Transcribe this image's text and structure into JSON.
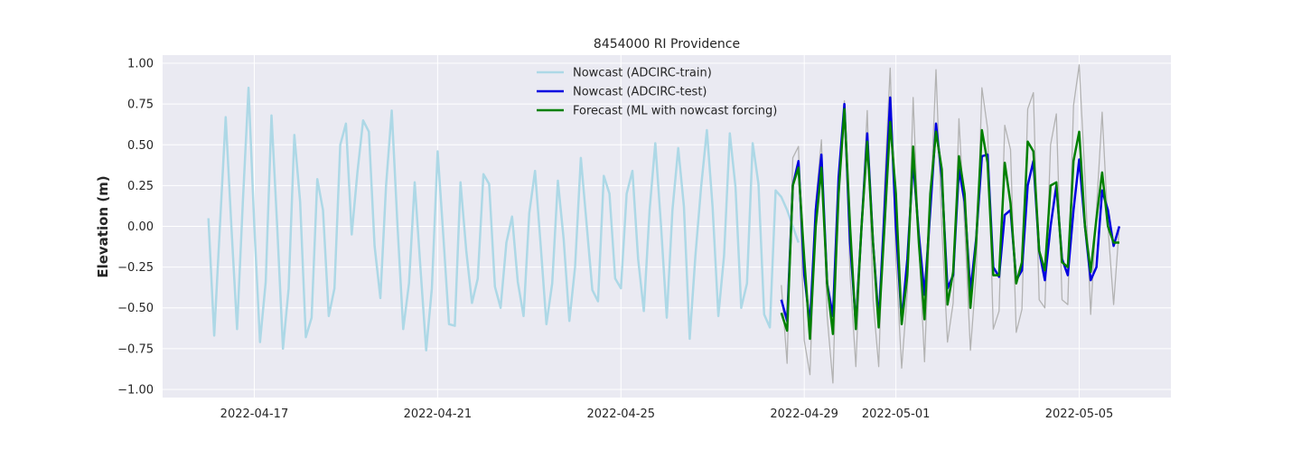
{
  "chart_data": {
    "type": "line",
    "title": "8454000 RI Providence",
    "xlabel": "",
    "ylabel": "Elevation (m)",
    "x_axis": {
      "type": "date",
      "range": [
        "2022-04-15T00:00",
        "2022-05-07T00:00"
      ],
      "tick_labels": [
        "2022-04-17",
        "2022-04-21",
        "2022-04-25",
        "2022-04-29",
        "2022-05-01",
        "2022-05-05"
      ]
    },
    "ylim": [
      -1.05,
      1.05
    ],
    "y_ticks": [
      "1.00",
      "0.75",
      "0.50",
      "0.25",
      "0.00",
      "−0.25",
      "−0.50",
      "−0.75",
      "−1.00"
    ],
    "grid": true,
    "legend_position": "top-center",
    "series": [
      {
        "name": "Nowcast (ADCIRC-train)",
        "color": "#add8e6",
        "width": 2.5,
        "x": [
          "2022-04-16T00:00",
          "2022-04-16T03:00",
          "2022-04-16T06:00",
          "2022-04-16T09:00",
          "2022-04-16T12:00",
          "2022-04-16T15:00",
          "2022-04-16T18:00",
          "2022-04-16T21:00",
          "2022-04-17T00:00",
          "2022-04-17T03:00",
          "2022-04-17T06:00",
          "2022-04-17T09:00",
          "2022-04-17T12:00",
          "2022-04-17T15:00",
          "2022-04-17T18:00",
          "2022-04-17T21:00",
          "2022-04-18T00:00",
          "2022-04-18T03:00",
          "2022-04-18T06:00",
          "2022-04-18T09:00",
          "2022-04-18T12:00",
          "2022-04-18T15:00",
          "2022-04-18T18:00",
          "2022-04-18T21:00",
          "2022-04-19T00:00",
          "2022-04-19T03:00",
          "2022-04-19T06:00",
          "2022-04-19T09:00",
          "2022-04-19T12:00",
          "2022-04-19T15:00",
          "2022-04-19T18:00",
          "2022-04-19T21:00",
          "2022-04-20T00:00",
          "2022-04-20T03:00",
          "2022-04-20T06:00",
          "2022-04-20T09:00",
          "2022-04-20T12:00",
          "2022-04-20T15:00",
          "2022-04-20T18:00",
          "2022-04-20T21:00",
          "2022-04-21T00:00",
          "2022-04-21T03:00",
          "2022-04-21T06:00",
          "2022-04-21T09:00",
          "2022-04-21T12:00",
          "2022-04-21T15:00",
          "2022-04-21T18:00",
          "2022-04-21T21:00",
          "2022-04-22T00:00",
          "2022-04-22T03:00",
          "2022-04-22T06:00",
          "2022-04-22T09:00",
          "2022-04-22T12:00",
          "2022-04-22T15:00",
          "2022-04-22T18:00",
          "2022-04-22T21:00",
          "2022-04-23T00:00",
          "2022-04-23T03:00",
          "2022-04-23T06:00",
          "2022-04-23T09:00",
          "2022-04-23T12:00",
          "2022-04-23T15:00",
          "2022-04-23T18:00",
          "2022-04-23T21:00",
          "2022-04-24T00:00",
          "2022-04-24T03:00",
          "2022-04-24T06:00",
          "2022-04-24T09:00",
          "2022-04-24T12:00",
          "2022-04-24T15:00",
          "2022-04-24T18:00",
          "2022-04-24T21:00",
          "2022-04-25T00:00",
          "2022-04-25T03:00",
          "2022-04-25T06:00",
          "2022-04-25T09:00",
          "2022-04-25T12:00",
          "2022-04-25T15:00",
          "2022-04-25T18:00",
          "2022-04-25T21:00",
          "2022-04-26T00:00",
          "2022-04-26T03:00",
          "2022-04-26T06:00",
          "2022-04-26T09:00",
          "2022-04-26T12:00",
          "2022-04-26T15:00",
          "2022-04-26T18:00",
          "2022-04-26T21:00",
          "2022-04-27T00:00",
          "2022-04-27T03:00",
          "2022-04-27T06:00",
          "2022-04-27T09:00",
          "2022-04-27T12:00",
          "2022-04-27T15:00",
          "2022-04-27T18:00",
          "2022-04-27T21:00",
          "2022-04-28T00:00",
          "2022-04-28T03:00",
          "2022-04-28T06:00",
          "2022-04-28T09:00",
          "2022-04-28T12:00",
          "2022-04-28T15:00",
          "2022-04-28T18:00",
          "2022-04-28T21:00"
        ],
        "y": [
          0.05,
          -0.67,
          0.0,
          0.67,
          0.0,
          -0.63,
          0.15,
          0.85,
          0.0,
          -0.71,
          -0.34,
          0.68,
          0.0,
          -0.75,
          -0.38,
          0.56,
          0.15,
          -0.68,
          -0.56,
          0.29,
          0.1,
          -0.55,
          -0.38,
          0.5,
          0.63,
          -0.05,
          0.33,
          0.65,
          0.58,
          -0.12,
          -0.44,
          0.25,
          0.71,
          0.0,
          -0.63,
          -0.35,
          0.27,
          -0.25,
          -0.76,
          -0.38,
          0.46,
          -0.06,
          -0.6,
          -0.61,
          0.27,
          -0.15,
          -0.47,
          -0.32,
          0.32,
          0.26,
          -0.37,
          -0.5,
          -0.1,
          0.06,
          -0.34,
          -0.55,
          0.08,
          0.34,
          -0.12,
          -0.6,
          -0.35,
          0.28,
          -0.08,
          -0.58,
          -0.25,
          0.42,
          0.02,
          -0.39,
          -0.46,
          0.31,
          0.2,
          -0.32,
          -0.38,
          0.2,
          0.34,
          -0.2,
          -0.52,
          0.1,
          0.51,
          0.0,
          -0.56,
          0.1,
          0.48,
          0.12,
          -0.69,
          -0.18,
          0.24,
          0.59,
          0.12,
          -0.55,
          -0.18,
          0.57,
          0.24,
          -0.5,
          -0.35,
          0.51,
          0.26,
          -0.54,
          -0.62,
          0.22,
          0.18,
          0.1,
          0.0,
          -0.1
        ]
      },
      {
        "name": "",
        "color": "#b3b3b3",
        "width": 1.3,
        "x": [
          "2022-04-28T12:00",
          "2022-04-28T15:00",
          "2022-04-28T18:00",
          "2022-04-28T21:00",
          "2022-04-29T00:00",
          "2022-04-29T03:00",
          "2022-04-29T06:00",
          "2022-04-29T09:00",
          "2022-04-29T12:00",
          "2022-04-29T15:00",
          "2022-04-29T18:00",
          "2022-04-29T21:00",
          "2022-04-30T00:00",
          "2022-04-30T03:00",
          "2022-04-30T06:00",
          "2022-04-30T09:00",
          "2022-04-30T12:00",
          "2022-04-30T15:00",
          "2022-04-30T18:00",
          "2022-04-30T21:00",
          "2022-05-01T00:00",
          "2022-05-01T03:00",
          "2022-05-01T06:00",
          "2022-05-01T09:00",
          "2022-05-01T12:00",
          "2022-05-01T15:00",
          "2022-05-01T18:00",
          "2022-05-01T21:00",
          "2022-05-02T00:00",
          "2022-05-02T03:00",
          "2022-05-02T06:00",
          "2022-05-02T09:00",
          "2022-05-02T12:00",
          "2022-05-02T15:00",
          "2022-05-02T18:00",
          "2022-05-02T21:00",
          "2022-05-03T00:00",
          "2022-05-03T03:00",
          "2022-05-03T06:00",
          "2022-05-03T09:00",
          "2022-05-03T12:00",
          "2022-05-03T15:00",
          "2022-05-03T18:00",
          "2022-05-03T21:00",
          "2022-05-04T00:00",
          "2022-05-04T03:00",
          "2022-05-04T06:00",
          "2022-05-04T09:00",
          "2022-05-04T12:00",
          "2022-05-04T15:00",
          "2022-05-04T18:00",
          "2022-05-04T21:00",
          "2022-05-05T00:00",
          "2022-05-05T03:00",
          "2022-05-05T06:00",
          "2022-05-05T09:00",
          "2022-05-05T12:00",
          "2022-05-05T15:00",
          "2022-05-05T18:00",
          "2022-05-05T21:00"
        ],
        "y": [
          -0.36,
          -0.84,
          0.42,
          0.49,
          -0.7,
          -0.91,
          0.15,
          0.53,
          -0.55,
          -0.96,
          0.26,
          0.77,
          -0.3,
          -0.86,
          0.0,
          0.71,
          -0.45,
          -0.86,
          0.25,
          0.97,
          -0.2,
          -0.87,
          -0.4,
          0.79,
          -0.1,
          -0.83,
          0.1,
          0.96,
          0.0,
          -0.71,
          -0.47,
          0.66,
          0.0,
          -0.76,
          -0.3,
          0.85,
          0.6,
          -0.63,
          -0.52,
          0.62,
          0.47,
          -0.65,
          -0.51,
          0.72,
          0.82,
          -0.45,
          -0.5,
          0.5,
          0.69,
          -0.45,
          -0.48,
          0.74,
          0.99,
          0.3,
          -0.54,
          0.1,
          0.7,
          0.0,
          -0.48,
          0.0
        ]
      },
      {
        "name": "Nowcast (ADCIRC-test)",
        "color": "#0000e0",
        "width": 2.5,
        "x": [
          "2022-04-28T12:00",
          "2022-04-28T15:00",
          "2022-04-28T18:00",
          "2022-04-28T21:00",
          "2022-04-29T00:00",
          "2022-04-29T03:00",
          "2022-04-29T06:00",
          "2022-04-29T09:00",
          "2022-04-29T12:00",
          "2022-04-29T15:00",
          "2022-04-29T18:00",
          "2022-04-29T21:00",
          "2022-04-30T00:00",
          "2022-04-30T03:00",
          "2022-04-30T06:00",
          "2022-04-30T09:00",
          "2022-04-30T12:00",
          "2022-04-30T15:00",
          "2022-04-30T18:00",
          "2022-04-30T21:00",
          "2022-05-01T00:00",
          "2022-05-01T03:00",
          "2022-05-01T06:00",
          "2022-05-01T09:00",
          "2022-05-01T12:00",
          "2022-05-01T15:00",
          "2022-05-01T18:00",
          "2022-05-01T21:00",
          "2022-05-02T00:00",
          "2022-05-02T03:00",
          "2022-05-02T06:00",
          "2022-05-02T09:00",
          "2022-05-02T12:00",
          "2022-05-02T15:00",
          "2022-05-02T18:00",
          "2022-05-02T21:00",
          "2022-05-03T00:00",
          "2022-05-03T03:00",
          "2022-05-03T06:00",
          "2022-05-03T09:00",
          "2022-05-03T12:00",
          "2022-05-03T15:00",
          "2022-05-03T18:00",
          "2022-05-03T21:00",
          "2022-05-04T00:00",
          "2022-05-04T03:00",
          "2022-05-04T06:00",
          "2022-05-04T09:00",
          "2022-05-04T12:00",
          "2022-05-04T15:00",
          "2022-05-04T18:00",
          "2022-05-04T21:00",
          "2022-05-05T00:00",
          "2022-05-05T03:00",
          "2022-05-05T06:00",
          "2022-05-05T09:00",
          "2022-05-05T12:00",
          "2022-05-05T15:00",
          "2022-05-05T18:00",
          "2022-05-05T21:00"
        ],
        "y": [
          -0.45,
          -0.58,
          0.25,
          0.4,
          -0.3,
          -0.6,
          0.1,
          0.44,
          -0.35,
          -0.55,
          0.3,
          0.75,
          -0.1,
          -0.6,
          0.0,
          0.57,
          -0.1,
          -0.58,
          0.1,
          0.79,
          0.0,
          -0.58,
          -0.2,
          0.4,
          -0.05,
          -0.42,
          0.1,
          0.63,
          0.3,
          -0.38,
          -0.3,
          0.35,
          0.15,
          -0.4,
          -0.08,
          0.43,
          0.44,
          -0.25,
          -0.31,
          0.07,
          0.1,
          -0.33,
          -0.27,
          0.25,
          0.4,
          -0.15,
          -0.33,
          0.0,
          0.25,
          -0.2,
          -0.3,
          0.1,
          0.41,
          0.0,
          -0.33,
          -0.25,
          0.22,
          0.1,
          -0.12,
          0.0
        ]
      },
      {
        "name": "Forecast (ML with nowcast forcing)",
        "color": "#008000",
        "width": 2.5,
        "x": [
          "2022-04-28T12:00",
          "2022-04-28T15:00",
          "2022-04-28T18:00",
          "2022-04-28T21:00",
          "2022-04-29T00:00",
          "2022-04-29T03:00",
          "2022-04-29T06:00",
          "2022-04-29T09:00",
          "2022-04-29T12:00",
          "2022-04-29T15:00",
          "2022-04-29T18:00",
          "2022-04-29T21:00",
          "2022-04-30T00:00",
          "2022-04-30T03:00",
          "2022-04-30T06:00",
          "2022-04-30T09:00",
          "2022-04-30T12:00",
          "2022-04-30T15:00",
          "2022-04-30T18:00",
          "2022-04-30T21:00",
          "2022-05-01T00:00",
          "2022-05-01T03:00",
          "2022-05-01T06:00",
          "2022-05-01T09:00",
          "2022-05-01T12:00",
          "2022-05-01T15:00",
          "2022-05-01T18:00",
          "2022-05-01T21:00",
          "2022-05-02T00:00",
          "2022-05-02T03:00",
          "2022-05-02T06:00",
          "2022-05-02T09:00",
          "2022-05-02T12:00",
          "2022-05-02T15:00",
          "2022-05-02T18:00",
          "2022-05-02T21:00",
          "2022-05-03T00:00",
          "2022-05-03T03:00",
          "2022-05-03T06:00",
          "2022-05-03T09:00",
          "2022-05-03T12:00",
          "2022-05-03T15:00",
          "2022-05-03T18:00",
          "2022-05-03T21:00",
          "2022-05-04T00:00",
          "2022-05-04T03:00",
          "2022-05-04T06:00",
          "2022-05-04T09:00",
          "2022-05-04T12:00",
          "2022-05-04T15:00",
          "2022-05-04T18:00",
          "2022-05-04T21:00",
          "2022-05-05T00:00",
          "2022-05-05T03:00",
          "2022-05-05T06:00",
          "2022-05-05T09:00",
          "2022-05-05T12:00",
          "2022-05-05T15:00",
          "2022-05-05T18:00",
          "2022-05-05T21:00"
        ],
        "y": [
          -0.53,
          -0.64,
          0.25,
          0.36,
          -0.2,
          -0.69,
          0.0,
          0.36,
          -0.35,
          -0.66,
          0.2,
          0.72,
          0.0,
          -0.63,
          0.0,
          0.52,
          -0.1,
          -0.62,
          0.0,
          0.64,
          0.2,
          -0.6,
          -0.3,
          0.49,
          -0.1,
          -0.57,
          0.2,
          0.58,
          0.35,
          -0.48,
          -0.28,
          0.43,
          0.2,
          -0.5,
          -0.1,
          0.59,
          0.39,
          -0.3,
          -0.3,
          0.39,
          0.14,
          -0.35,
          -0.22,
          0.52,
          0.46,
          -0.15,
          -0.27,
          0.25,
          0.27,
          -0.22,
          -0.25,
          0.4,
          0.58,
          0.0,
          -0.28,
          0.05,
          0.33,
          0.0,
          -0.1,
          -0.1
        ]
      }
    ]
  }
}
